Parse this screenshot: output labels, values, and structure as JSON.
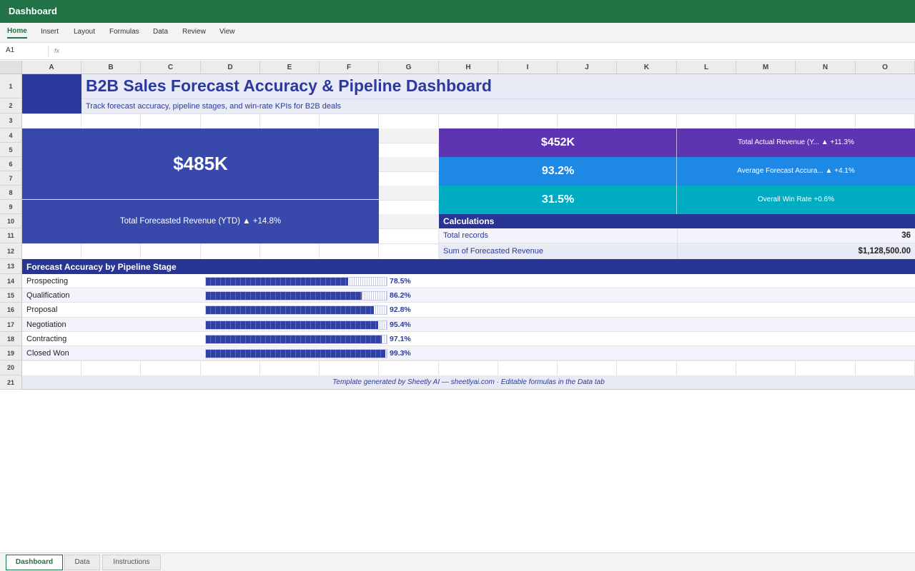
{
  "app": {
    "title": "Dashboard"
  },
  "ribbon": {
    "tabs": [
      "Home",
      "Insert",
      "Layout",
      "Formulas",
      "Data",
      "Review",
      "View"
    ],
    "active": "Home"
  },
  "formula_bar": {
    "cell": "A1",
    "fx": "fx"
  },
  "columns": [
    "A",
    "B",
    "C",
    "D",
    "E",
    "F",
    "G",
    "H",
    "I",
    "J",
    "K",
    "L",
    "M",
    "N",
    "O"
  ],
  "rows": [
    "1",
    "2",
    "3",
    "4",
    "5",
    "6",
    "7",
    "8",
    "9",
    "10",
    "11",
    "12",
    "13",
    "14",
    "15",
    "16",
    "17",
    "18",
    "19",
    "20",
    "21"
  ],
  "sheet": {
    "title": "B2B Sales Forecast Accuracy & Pipeline Dashboard",
    "subtitle": "Track forecast accuracy, pipeline stages, and win-rate KPIs for B2B deals",
    "hero": {
      "value": "$485K",
      "label": "Total Forecasted Revenue (YTD) ▲ +14.8%"
    },
    "kpis": [
      {
        "value": "$452K",
        "label": "Total Actual Revenue (Y... ▲ +11.3%",
        "color": "#5e35b1"
      },
      {
        "value": "93.2%",
        "label": "Average Forecast Accura... ▲ +4.1%",
        "color": "#1e88e5"
      },
      {
        "value": "31.5%",
        "label": "Overall Win Rate +0.6%",
        "color": "#00acc1"
      }
    ],
    "calculations": {
      "title": "Calculations",
      "rows": [
        {
          "label": "Total records",
          "value": "36"
        },
        {
          "label": "Sum of Forecasted Revenue",
          "value": "$1,128,500.00"
        }
      ]
    },
    "stage_section": {
      "title": "Forecast Accuracy by Pipeline Stage",
      "stages": [
        {
          "label": "Prospecting",
          "pct": "78.5%",
          "value": 78.5
        },
        {
          "label": "Qualification",
          "pct": "86.2%",
          "value": 86.2
        },
        {
          "label": "Proposal",
          "pct": "92.8%",
          "value": 92.8
        },
        {
          "label": "Negotiation",
          "pct": "95.4%",
          "value": 95.4
        },
        {
          "label": "Contracting",
          "pct": "97.1%",
          "value": 97.1
        },
        {
          "label": "Closed Won",
          "pct": "99.3%",
          "value": 99.3
        }
      ]
    },
    "footer": "Template generated by Sheetly AI — sheetlyai.com · Editable formulas in the Data tab"
  },
  "colors": {
    "brand_green": "#217346",
    "header_blue": "#2b3a9c",
    "hero_blue": "#3949ab",
    "band_light": "#e8eaf6"
  },
  "sheet_tabs": [
    {
      "label": "Dashboard",
      "active": true
    },
    {
      "label": "Data",
      "active": false
    },
    {
      "label": "Instructions",
      "active": false
    }
  ]
}
